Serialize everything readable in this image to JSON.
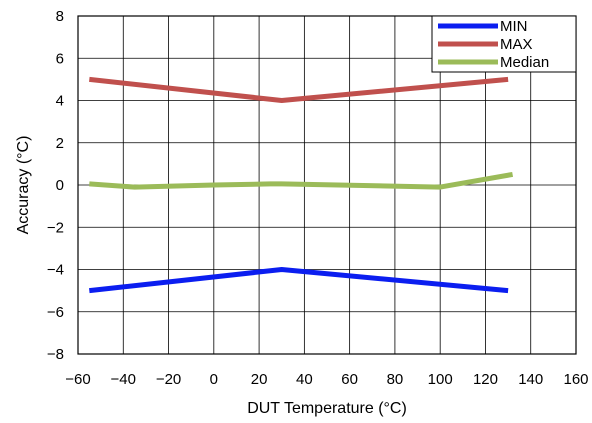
{
  "chart_data": {
    "type": "line",
    "xlabel": "DUT Temperature (°C)",
    "ylabel": "Accuracy (°C)",
    "xlim": [
      -60,
      160
    ],
    "ylim": [
      -8,
      8
    ],
    "x_ticks": [
      -60,
      -40,
      -20,
      0,
      20,
      40,
      60,
      80,
      100,
      120,
      140,
      160
    ],
    "x_tick_labels": [
      "−60",
      "−40",
      "−20",
      "0",
      "20",
      "40",
      "60",
      "80",
      "100",
      "120",
      "140",
      "160"
    ],
    "y_ticks": [
      -8,
      -6,
      -4,
      -2,
      0,
      2,
      4,
      6,
      8
    ],
    "y_tick_labels": [
      "−8",
      "−6",
      "−4",
      "−2",
      "0",
      "2",
      "4",
      "6",
      "8"
    ],
    "grid": true,
    "legend_position": "top-right",
    "series": [
      {
        "name": "MIN",
        "color": "#0b1ef0",
        "x": [
          -55,
          30,
          130
        ],
        "y": [
          -5,
          -4,
          -5
        ]
      },
      {
        "name": "MAX",
        "color": "#c0504d",
        "x": [
          -55,
          30,
          130
        ],
        "y": [
          5,
          4,
          5
        ]
      },
      {
        "name": "Median",
        "color": "#9bbb59",
        "x": [
          -55,
          -35,
          0,
          25,
          30,
          100,
          132
        ],
        "y": [
          0.05,
          -0.1,
          0.0,
          0.05,
          0.05,
          -0.1,
          0.5
        ]
      }
    ]
  }
}
